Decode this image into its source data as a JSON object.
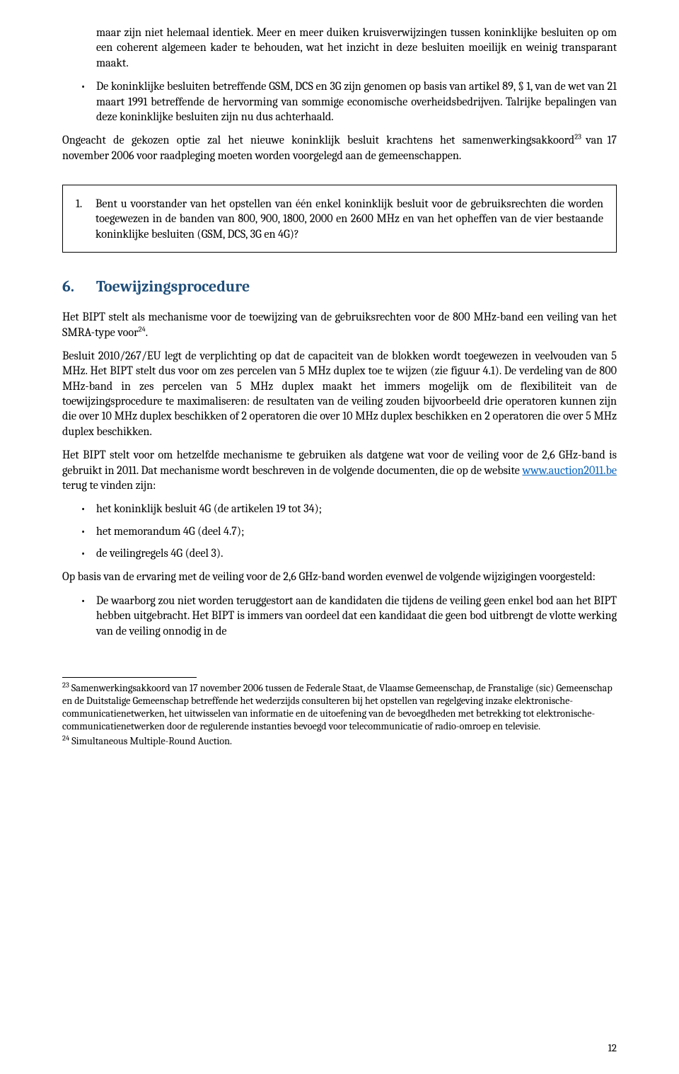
{
  "intro_continuation": "maar zijn niet helemaal identiek. Meer en meer duiken kruisverwijzingen tussen koninklijke besluiten op om een coherent algemeen kader te behouden, wat het inzicht in deze besluiten moeilijk en weinig transparant maakt.",
  "bullet_intro": "De koninklijke besluiten betreffende GSM, DCS en 3G zijn genomen op basis van artikel 89, § 1, van de wet van 21 maart 1991 betreffende de hervorming van sommige economische overheidsbedrijven. Talrijke bepalingen van deze koninklijke besluiten zijn nu dus achterhaald.",
  "para_ongeacht_pre": "Ongeacht de gekozen optie zal het nieuwe koninklijk besluit krachtens het samenwerkingsakkoord",
  "sup23": "23",
  "para_ongeacht_post": " van 17 november 2006 voor raadpleging moeten worden voorgelegd aan de gemeenschappen.",
  "question1_num": "1.",
  "question1_text": "Bent u voorstander van het opstellen van één enkel koninklijk besluit voor de gebruiksrechten die worden toegewezen in de banden van 800, 900, 1800, 2000 en 2600 MHz en van het opheffen van de vier bestaande koninklijke besluiten (GSM, DCS, 3G en 4G)?",
  "section_num": "6.",
  "section_title": "Toewijzingsprocedure",
  "para_s6_1_pre": "Het BIPT stelt als mechanisme voor de toewijzing van de gebruiksrechten voor de 800 MHz-band een veiling van het SMRA-type voor",
  "sup24": "24",
  "para_s6_1_post": ".",
  "para_s6_2": "Besluit 2010/267/EU legt de verplichting op dat de capaciteit van de blokken wordt toegewezen in veelvouden van 5 MHz. Het BIPT stelt dus voor om zes percelen van 5 MHz duplex toe te wijzen (zie figuur 4.1). De verdeling van de 800 MHz-band in zes percelen van 5 MHz duplex maakt het immers mogelijk om de flexibiliteit van de toewijzingsprocedure te maximaliseren: de resultaten van de veiling zouden bijvoorbeeld drie operatoren kunnen zijn die over 10 MHz duplex beschikken of 2 operatoren die over 10 MHz duplex beschikken en 2 operatoren die over 5 MHz duplex beschikken.",
  "para_s6_3_a": "Het BIPT stelt voor om hetzelfde mechanisme te gebruiken als datgene wat voor de veiling voor de 2,6 GHz-band is gebruikt in 2011. Dat mechanisme wordt beschreven in de volgende documenten, die op de website ",
  "link_text": "www.auction2011.be",
  "link_href": "http://www.auction2011.be",
  "para_s6_3_b": " terug te vinden zijn:",
  "s6_bullets": [
    "het koninklijk besluit 4G (de artikelen 19 tot 34);",
    "het memorandum 4G (deel 4.7);",
    "de veilingregels 4G (deel 3)."
  ],
  "para_s6_4": "Op basis van de ervaring met de veiling voor de 2,6 GHz-band worden evenwel de volgende wijzigingen voorgesteld:",
  "s6_sub_bullet": "De waarborg zou niet worden teruggestort aan de kandidaten die tijdens de veiling geen enkel bod aan het BIPT hebben uitgebracht. Het BIPT is immers van oordeel dat een kandidaat die geen bod uitbrengt de vlotte werking van de veiling onnodig in de",
  "fn23_sup": "23",
  "fn23": " Samenwerkingsakkoord van 17 november 2006 tussen de Federale Staat, de Vlaamse Gemeenschap, de Franstalige (sic) Gemeenschap en de Duitstalige Gemeenschap betreffende het wederzijds consulteren bij het opstellen van regelgeving inzake elektronische-communicatienetwerken, het uitwisselen van informatie en de uitoefening van de bevoegdheden met betrekking tot elektronische-communicatienetwerken door de regulerende instanties bevoegd voor telecommunicatie of radio-omroep en televisie.",
  "fn24_sup": "24",
  "fn24": " Simultaneous Multiple-Round Auction.",
  "page_number": "12"
}
